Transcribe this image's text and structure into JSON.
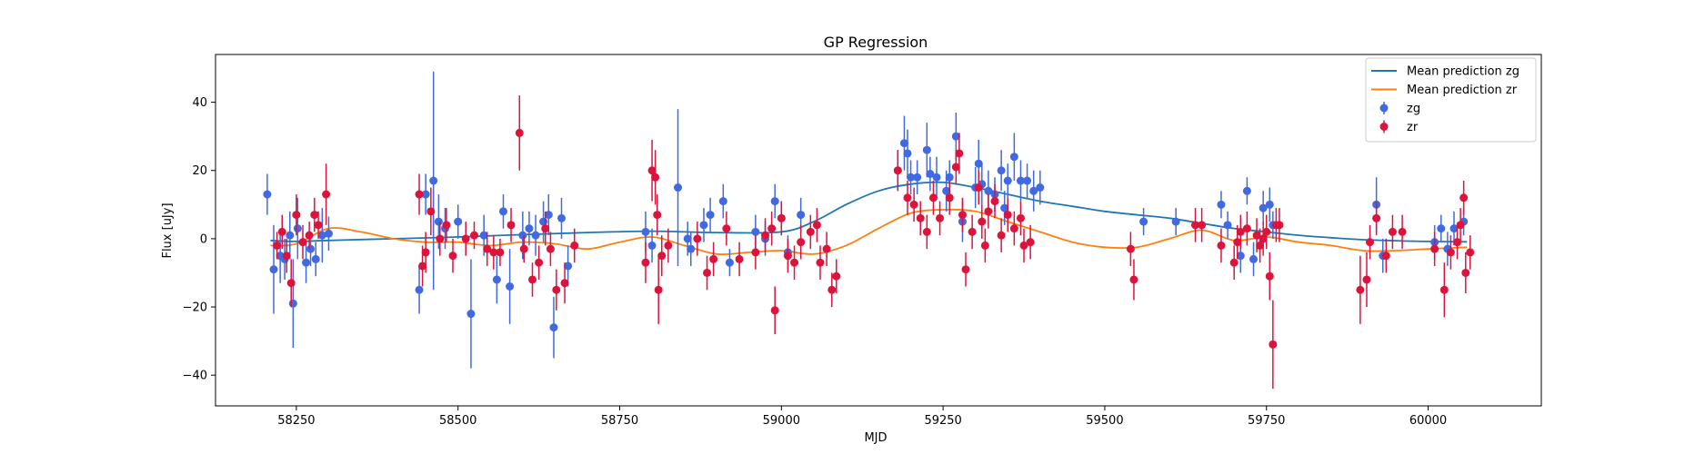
{
  "chart_data": {
    "type": "scatter",
    "title": "GP Regression",
    "xlabel": "MJD",
    "ylabel": "Flux [uJy]",
    "xlim": [
      58125,
      60175
    ],
    "ylim": [
      -49,
      54
    ],
    "xticks": [
      58250,
      58500,
      58750,
      59000,
      59250,
      59500,
      59750,
      60000
    ],
    "yticks": [
      -40,
      -20,
      0,
      20,
      40
    ],
    "grid": false,
    "legend_position": "top-right",
    "legend": [
      {
        "label": "Mean prediction zg",
        "kind": "line",
        "color": "#1f77b4"
      },
      {
        "label": "Mean prediction zr",
        "kind": "line",
        "color": "#ff7f0e"
      },
      {
        "label": "zg",
        "kind": "errorbar",
        "color": "#4169e1"
      },
      {
        "label": "zr",
        "kind": "errorbar",
        "color": "#dc143c"
      }
    ],
    "lines": [
      {
        "name": "Mean prediction zg",
        "color": "#1f77b4",
        "x": [
          58210,
          58250,
          58300,
          58400,
          58500,
          58600,
          58700,
          58800,
          58900,
          59000,
          59050,
          59100,
          59150,
          59200,
          59250,
          59300,
          59350,
          59400,
          59450,
          59500,
          59550,
          59600,
          59650,
          59700,
          59750,
          59800,
          59850,
          59900,
          59950,
          60000,
          60060
        ],
        "y": [
          -0.5,
          -0.8,
          -0.5,
          0,
          0.5,
          1.2,
          1.8,
          2.2,
          1.8,
          2,
          5,
          10,
          14,
          16,
          16.5,
          15,
          13,
          11,
          9.5,
          8,
          7,
          6,
          4.5,
          3,
          2,
          1,
          0.3,
          -0.3,
          -0.6,
          -0.8,
          -0.9
        ]
      },
      {
        "name": "Mean prediction zr",
        "color": "#ff7f0e",
        "x": [
          58210,
          58250,
          58300,
          58350,
          58400,
          58450,
          58500,
          58550,
          58600,
          58650,
          58700,
          58750,
          58800,
          58850,
          58900,
          58950,
          59000,
          59050,
          59100,
          59150,
          59200,
          59250,
          59300,
          59350,
          59400,
          59450,
          59500,
          59550,
          59600,
          59650,
          59700,
          59750,
          59800,
          59850,
          59900,
          59950,
          60000,
          60060
        ],
        "y": [
          -2,
          -1.5,
          3,
          2,
          0,
          -1,
          -1,
          -2,
          -1,
          -1.5,
          -3,
          -1,
          0.5,
          -2,
          -4.5,
          -4,
          -3.5,
          -4.5,
          -2,
          3,
          7.5,
          8.5,
          8,
          5,
          2,
          -1,
          -2.5,
          -2.5,
          0,
          2.5,
          -0.5,
          0.5,
          -1,
          -2,
          -3.5,
          -3.5,
          -3,
          -2.5
        ]
      }
    ],
    "series": [
      {
        "name": "zg",
        "color": "#4169e1",
        "points": [
          [
            58205,
            13,
            6
          ],
          [
            58215,
            -9,
            13
          ],
          [
            58225,
            -5,
            8
          ],
          [
            58232,
            -6,
            6
          ],
          [
            58240,
            1,
            7
          ],
          [
            58245,
            -19,
            13
          ],
          [
            58252,
            3,
            9
          ],
          [
            58265,
            -7,
            6
          ],
          [
            58272,
            -3,
            5
          ],
          [
            58280,
            -6,
            5
          ],
          [
            58290,
            1,
            8
          ],
          [
            58300,
            1.5,
            5
          ],
          [
            58440,
            -15,
            7
          ],
          [
            58450,
            13,
            6
          ],
          [
            58462,
            17,
            32
          ],
          [
            58470,
            5,
            8
          ],
          [
            58480,
            3,
            6
          ],
          [
            58500,
            5,
            5
          ],
          [
            58520,
            -22,
            16
          ],
          [
            58540,
            1,
            6
          ],
          [
            58560,
            -12,
            7
          ],
          [
            58570,
            8,
            5
          ],
          [
            58580,
            -14,
            11
          ],
          [
            58600,
            1,
            7
          ],
          [
            58610,
            3,
            5
          ],
          [
            58620,
            1,
            6
          ],
          [
            58632,
            5,
            6
          ],
          [
            58640,
            7,
            6
          ],
          [
            58648,
            -26,
            9
          ],
          [
            58660,
            6,
            6
          ],
          [
            58670,
            -8,
            6
          ],
          [
            58790,
            2,
            6
          ],
          [
            58800,
            -2,
            5
          ],
          [
            58840,
            15,
            23
          ],
          [
            58855,
            0,
            5
          ],
          [
            58860,
            -3,
            5
          ],
          [
            58880,
            4,
            5
          ],
          [
            58890,
            7,
            5
          ],
          [
            58910,
            11,
            5
          ],
          [
            58920,
            -7,
            4
          ],
          [
            58960,
            2,
            5
          ],
          [
            58975,
            0,
            5
          ],
          [
            58990,
            11,
            5
          ],
          [
            59000,
            6,
            5
          ],
          [
            59010,
            -4,
            5
          ],
          [
            59030,
            7,
            5
          ],
          [
            59180,
            20,
            6
          ],
          [
            59190,
            28,
            8
          ],
          [
            59195,
            25,
            7
          ],
          [
            59200,
            18,
            5
          ],
          [
            59210,
            18,
            5
          ],
          [
            59225,
            26,
            8
          ],
          [
            59230,
            19,
            5
          ],
          [
            59240,
            18,
            6
          ],
          [
            59255,
            14,
            6
          ],
          [
            59260,
            18,
            5
          ],
          [
            59270,
            30,
            7
          ],
          [
            59280,
            5,
            6
          ],
          [
            59300,
            15,
            6
          ],
          [
            59305,
            22,
            7
          ],
          [
            59310,
            16,
            6
          ],
          [
            59320,
            14,
            6
          ],
          [
            59330,
            13,
            5
          ],
          [
            59340,
            20,
            6
          ],
          [
            59345,
            9,
            5
          ],
          [
            59350,
            17,
            5
          ],
          [
            59360,
            24,
            7
          ],
          [
            59370,
            17,
            6
          ],
          [
            59380,
            17,
            5
          ],
          [
            59390,
            14,
            6
          ],
          [
            59400,
            15,
            5
          ],
          [
            59560,
            5,
            4
          ],
          [
            59610,
            5,
            4
          ],
          [
            59680,
            10,
            4
          ],
          [
            59690,
            4,
            4
          ],
          [
            59710,
            -5,
            5
          ],
          [
            59720,
            14,
            4
          ],
          [
            59730,
            -6,
            5
          ],
          [
            59745,
            9,
            5
          ],
          [
            59755,
            10,
            5
          ],
          [
            59760,
            4,
            4
          ],
          [
            59920,
            10,
            8
          ],
          [
            59930,
            -5,
            5
          ],
          [
            60010,
            -1,
            5
          ],
          [
            60020,
            3,
            4
          ],
          [
            60030,
            -3,
            5
          ],
          [
            60040,
            3,
            5
          ],
          [
            60055,
            5,
            4
          ]
        ]
      },
      {
        "name": "zr",
        "color": "#dc143c",
        "points": [
          [
            58220,
            -2,
            4
          ],
          [
            58228,
            2,
            5
          ],
          [
            58235,
            -5,
            5
          ],
          [
            58242,
            -13,
            7
          ],
          [
            58250,
            7,
            6
          ],
          [
            58260,
            -1,
            5
          ],
          [
            58270,
            1,
            4
          ],
          [
            58278,
            7,
            5
          ],
          [
            58284,
            4,
            4
          ],
          [
            58296,
            13,
            9
          ],
          [
            58440,
            13,
            6
          ],
          [
            58445,
            -8,
            6
          ],
          [
            58450,
            -4,
            6
          ],
          [
            58458,
            8,
            7
          ],
          [
            58472,
            0,
            5
          ],
          [
            58482,
            4,
            5
          ],
          [
            58492,
            -5,
            5
          ],
          [
            58512,
            0,
            5
          ],
          [
            58525,
            1,
            4
          ],
          [
            58545,
            -3,
            5
          ],
          [
            58555,
            -4,
            5
          ],
          [
            58565,
            -4,
            4
          ],
          [
            58582,
            4,
            5
          ],
          [
            58595,
            31,
            11
          ],
          [
            58602,
            -3,
            4
          ],
          [
            58615,
            -12,
            5
          ],
          [
            58625,
            -7,
            5
          ],
          [
            58635,
            3,
            5
          ],
          [
            58643,
            -3,
            5
          ],
          [
            58652,
            -15,
            6
          ],
          [
            58665,
            -13,
            6
          ],
          [
            58680,
            -2,
            5
          ],
          [
            58790,
            -7,
            6
          ],
          [
            58800,
            20,
            9
          ],
          [
            58805,
            18,
            8
          ],
          [
            58808,
            7,
            6
          ],
          [
            58810,
            -15,
            10
          ],
          [
            58815,
            -5,
            6
          ],
          [
            58825,
            -2,
            5
          ],
          [
            58870,
            0,
            5
          ],
          [
            58885,
            -10,
            5
          ],
          [
            58895,
            -6,
            5
          ],
          [
            58915,
            3,
            5
          ],
          [
            58935,
            -6,
            5
          ],
          [
            58960,
            -4,
            5
          ],
          [
            58975,
            1,
            5
          ],
          [
            58985,
            3,
            5
          ],
          [
            58990,
            -21,
            7
          ],
          [
            59000,
            6,
            5
          ],
          [
            59010,
            -5,
            5
          ],
          [
            59020,
            -7,
            5
          ],
          [
            59030,
            -1,
            5
          ],
          [
            59045,
            2,
            5
          ],
          [
            59055,
            4,
            5
          ],
          [
            59060,
            -7,
            5
          ],
          [
            59070,
            -3,
            5
          ],
          [
            59078,
            -15,
            5
          ],
          [
            59085,
            -11,
            5
          ],
          [
            59180,
            20,
            6
          ],
          [
            59195,
            12,
            5
          ],
          [
            59205,
            10,
            5
          ],
          [
            59215,
            6,
            5
          ],
          [
            59225,
            2,
            5
          ],
          [
            59235,
            12,
            5
          ],
          [
            59245,
            6,
            5
          ],
          [
            59260,
            12,
            5
          ],
          [
            59270,
            21,
            5
          ],
          [
            59275,
            25,
            6
          ],
          [
            59280,
            7,
            5
          ],
          [
            59285,
            -9,
            5
          ],
          [
            59295,
            2,
            5
          ],
          [
            59305,
            15,
            5
          ],
          [
            59310,
            5,
            5
          ],
          [
            59315,
            -2,
            5
          ],
          [
            59320,
            8,
            5
          ],
          [
            59330,
            11,
            5
          ],
          [
            59340,
            1,
            5
          ],
          [
            59350,
            7,
            5
          ],
          [
            59360,
            3,
            5
          ],
          [
            59370,
            6,
            5
          ],
          [
            59375,
            -2,
            5
          ],
          [
            59385,
            -1,
            5
          ],
          [
            59540,
            -3,
            5
          ],
          [
            59545,
            -12,
            6
          ],
          [
            59640,
            4,
            5
          ],
          [
            59650,
            4,
            5
          ],
          [
            59680,
            -2,
            5
          ],
          [
            59700,
            -7,
            5
          ],
          [
            59705,
            -1,
            5
          ],
          [
            59710,
            2,
            5
          ],
          [
            59720,
            3,
            5
          ],
          [
            59735,
            1,
            5
          ],
          [
            59740,
            -2,
            5
          ],
          [
            59745,
            0,
            5
          ],
          [
            59750,
            2,
            5
          ],
          [
            59755,
            -11,
            7
          ],
          [
            59760,
            -31,
            13
          ],
          [
            59765,
            4,
            5
          ],
          [
            59770,
            4,
            5
          ],
          [
            59895,
            -15,
            10
          ],
          [
            59905,
            -12,
            8
          ],
          [
            59910,
            -1,
            5
          ],
          [
            59920,
            6,
            5
          ],
          [
            59935,
            -5,
            5
          ],
          [
            59945,
            2,
            5
          ],
          [
            59960,
            2,
            5
          ],
          [
            60010,
            -3,
            5
          ],
          [
            60025,
            -15,
            8
          ],
          [
            60035,
            -4,
            5
          ],
          [
            60045,
            -1,
            5
          ],
          [
            60050,
            4,
            5
          ],
          [
            60055,
            12,
            5
          ],
          [
            60058,
            -10,
            6
          ],
          [
            60065,
            -4,
            5
          ]
        ]
      }
    ]
  }
}
